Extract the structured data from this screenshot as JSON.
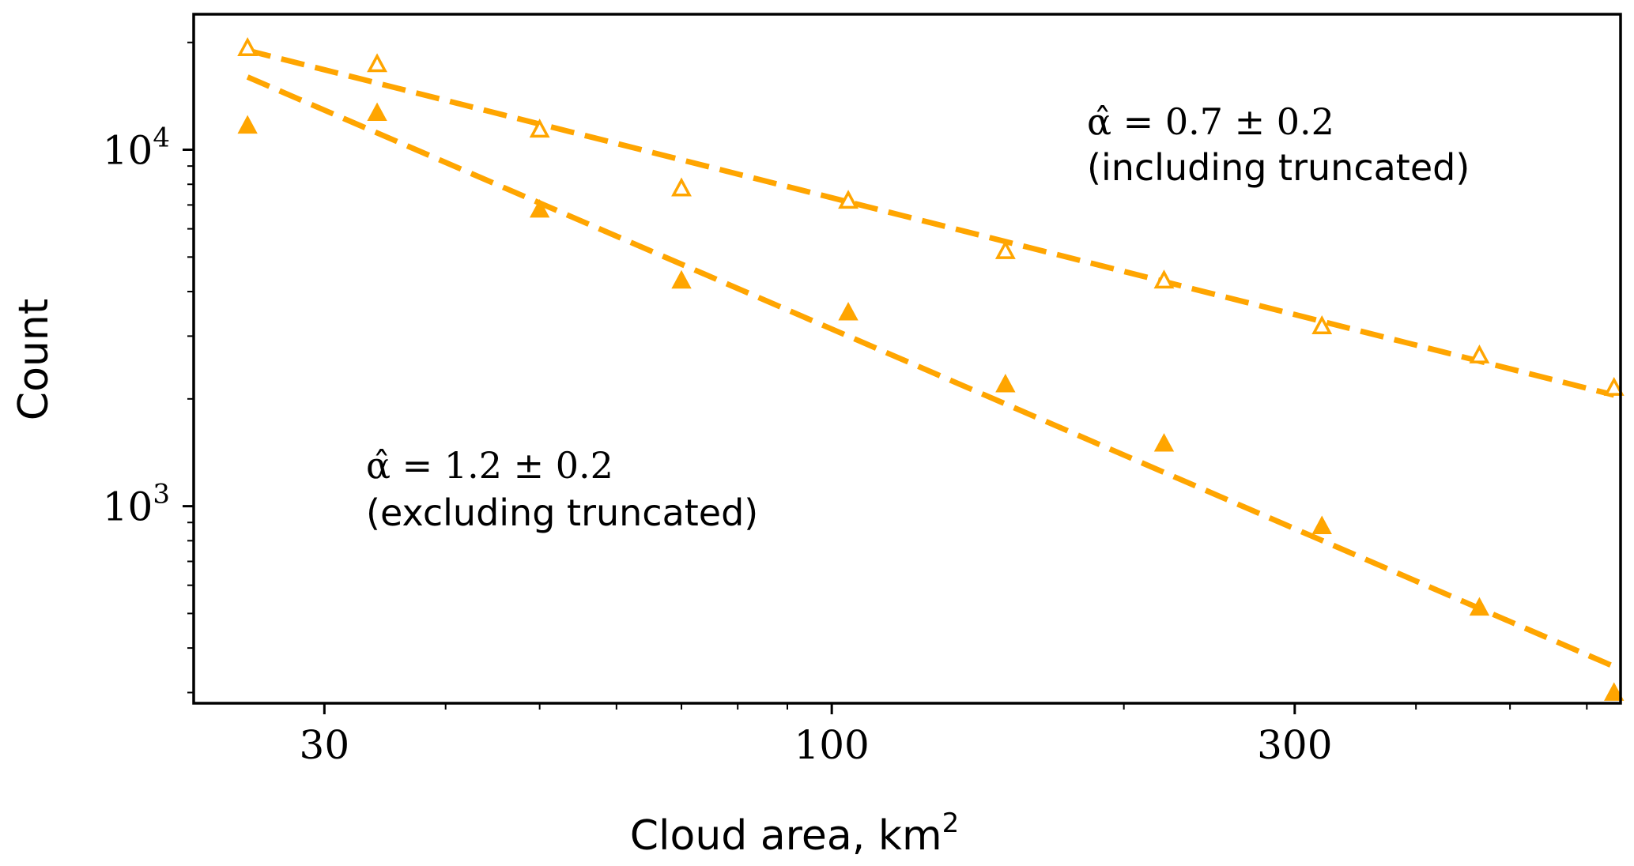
{
  "chart_data": {
    "type": "scatter",
    "xlabel": "Cloud area, km",
    "xlabel_superscript": "2",
    "ylabel": "Count",
    "x_scale": "log",
    "y_scale": "log",
    "xlim": [
      22,
      650
    ],
    "ylim": [
      280,
      24000
    ],
    "x_ticks": [
      {
        "value": 30,
        "label": "30"
      },
      {
        "value": 100,
        "label": "100"
      },
      {
        "value": 300,
        "label": "300"
      }
    ],
    "y_ticks": [
      {
        "value": 1000,
        "base": "10",
        "exp": "3"
      },
      {
        "value": 10000,
        "base": "10",
        "exp": "4"
      }
    ],
    "grid": false,
    "color": "#FFA500",
    "series": [
      {
        "marker": "open-triangle",
        "x": [
          25,
          34,
          50,
          70,
          104,
          151,
          220,
          320,
          465,
          640
        ],
        "y": [
          19300,
          17400,
          11400,
          7800,
          7200,
          5200,
          4300,
          3200,
          2650,
          2150
        ]
      },
      {
        "marker": "filled-triangle",
        "x": [
          25,
          34,
          50,
          70,
          104,
          151,
          220,
          320,
          465,
          640
        ],
        "y": [
          11700,
          12700,
          6800,
          4300,
          3500,
          2200,
          1500,
          880,
          520,
          300
        ]
      }
    ],
    "fits": [
      {
        "x": [
          25,
          640
        ],
        "y": [
          19000,
          2050
        ]
      },
      {
        "x": [
          25,
          640
        ],
        "y": [
          16000,
          355
        ]
      }
    ],
    "annotations": [
      {
        "math": "α̂ = 0.7 ± 0.2",
        "text": "(including truncated)"
      },
      {
        "math": "α̂ = 1.2 ± 0.2",
        "text": "(excluding truncated)"
      }
    ]
  }
}
